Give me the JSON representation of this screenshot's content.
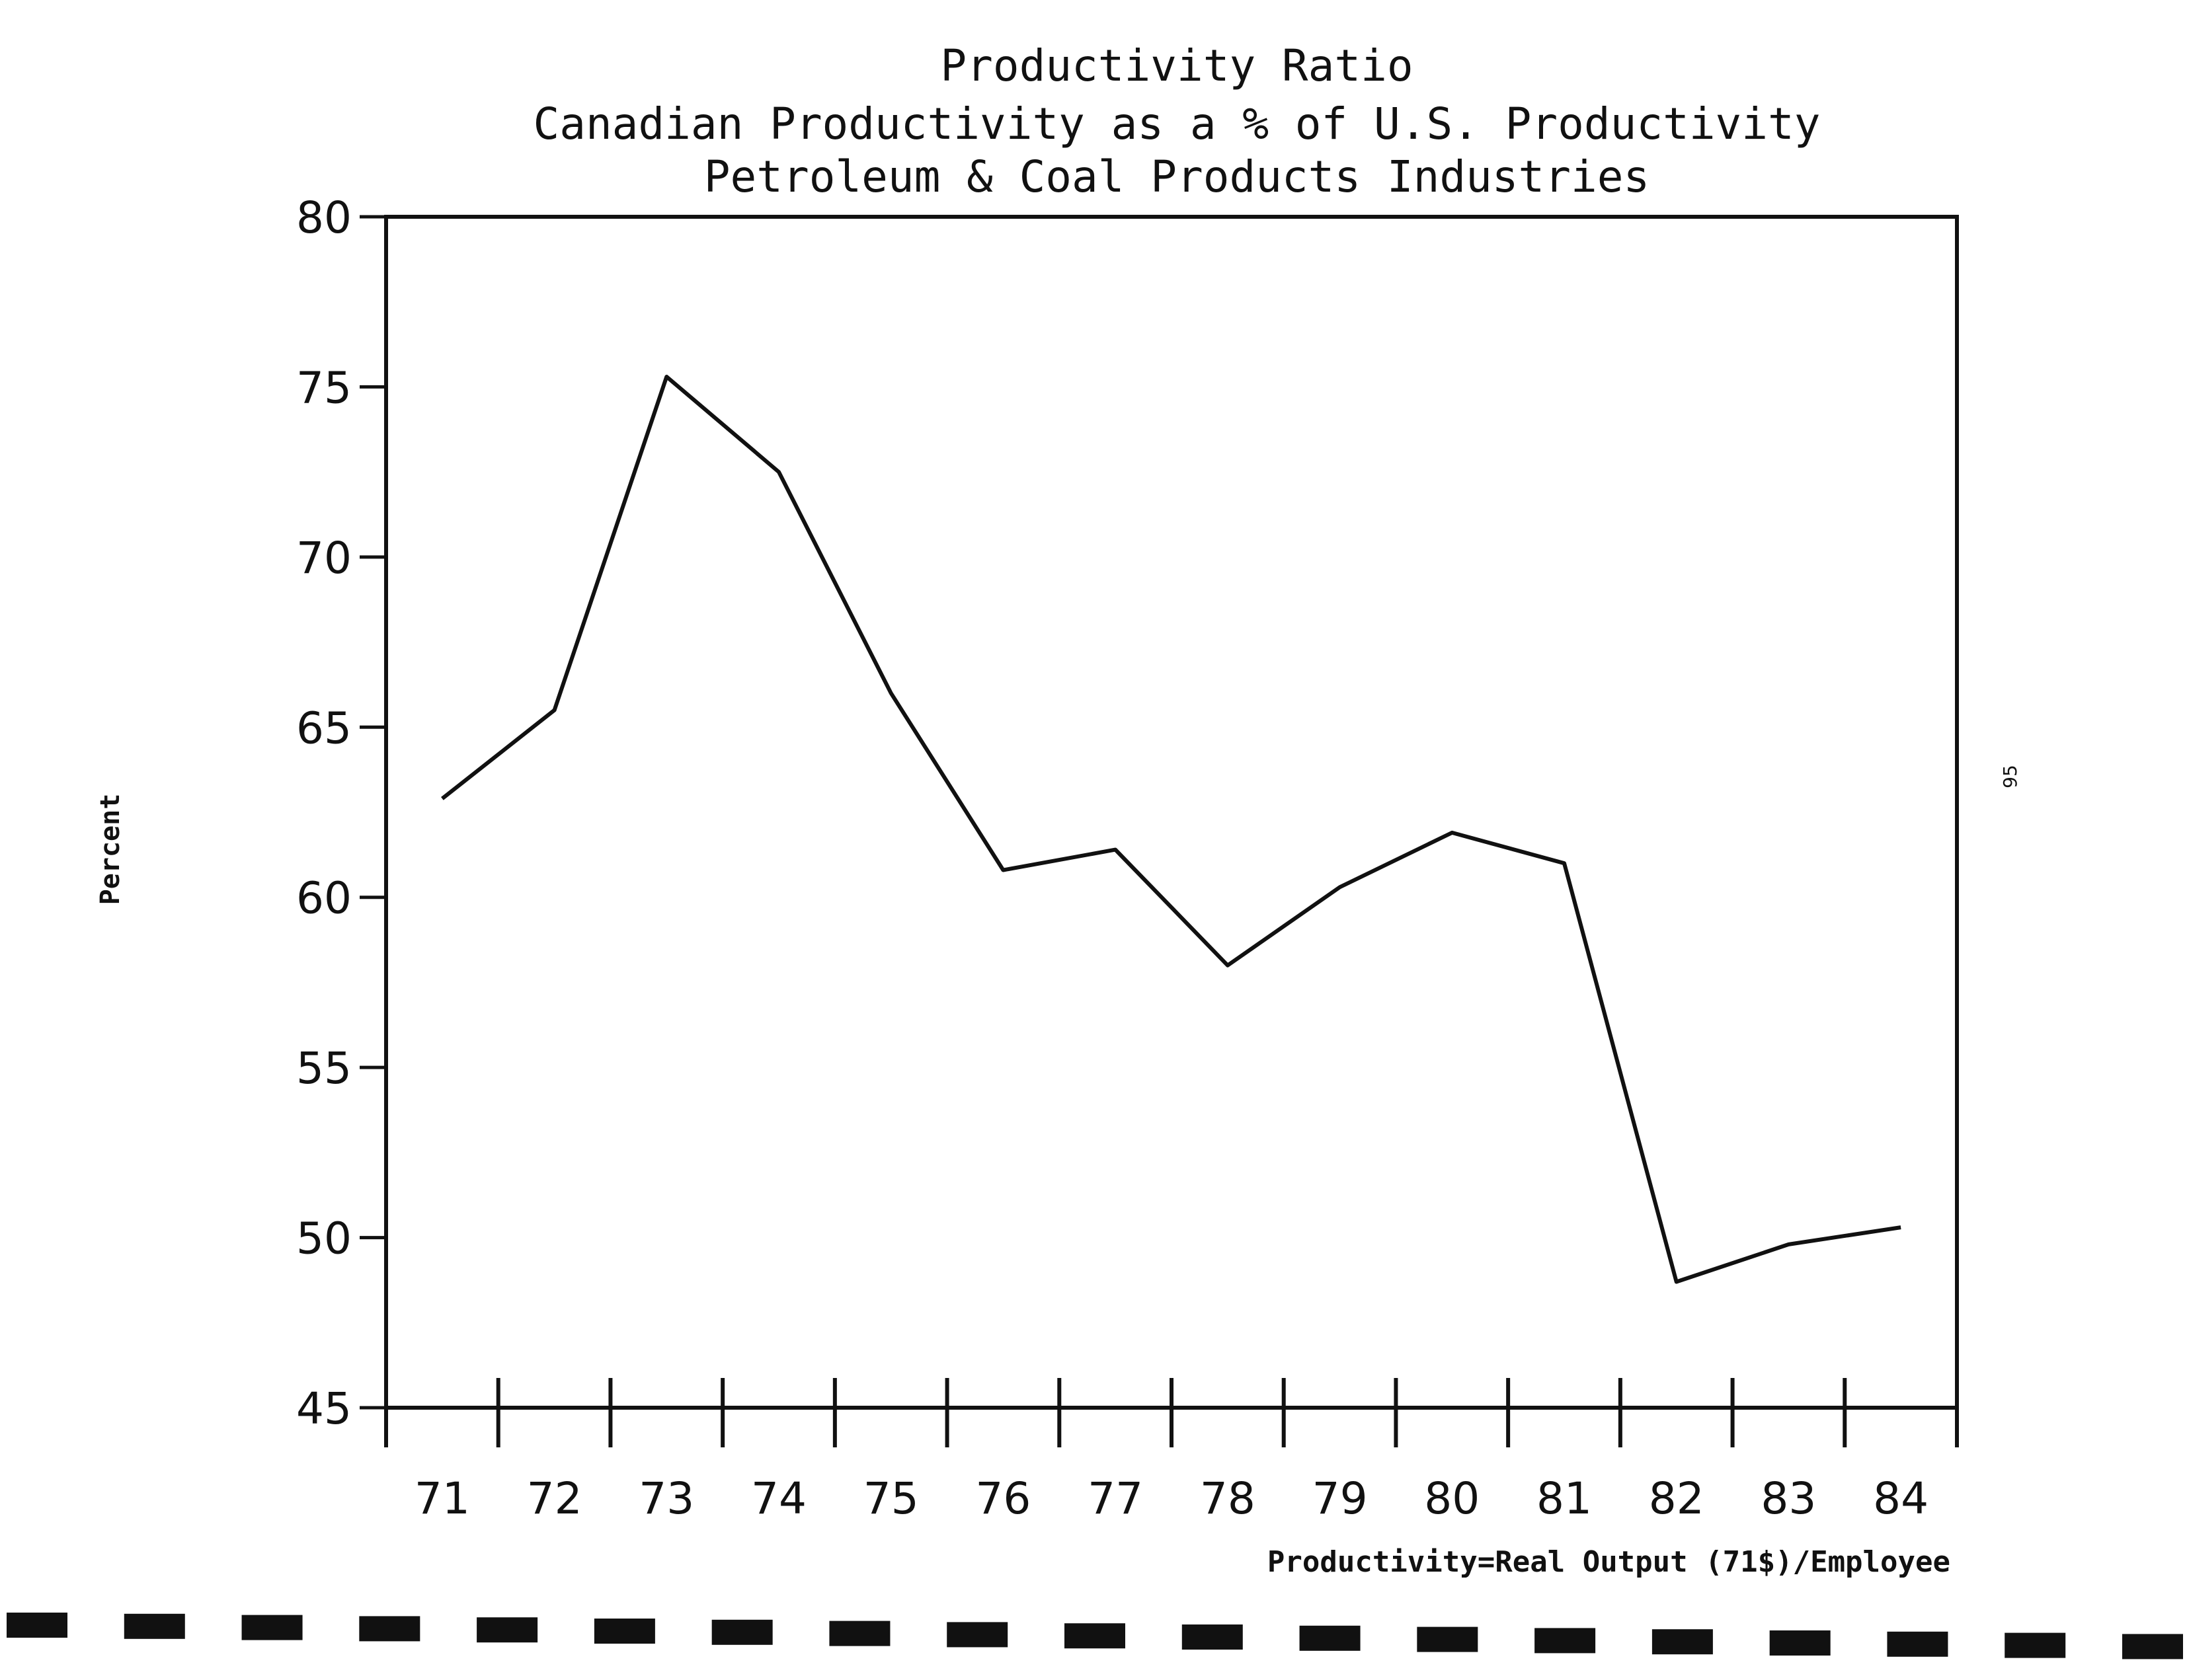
{
  "chart_data": {
    "type": "line",
    "title": "Productivity Ratio",
    "subtitle": "Canadian Productivity as a % of U.S. Productivity",
    "subtitle2": "Petroleum & Coal Products Industries",
    "ylabel": "Percent",
    "xlabel": "",
    "footnote": "Productivity=Real Output (71$)/Employee",
    "page_number": "95",
    "categories": [
      "71",
      "72",
      "73",
      "74",
      "75",
      "76",
      "77",
      "78",
      "79",
      "80",
      "81",
      "82",
      "83",
      "84"
    ],
    "values": [
      62.9,
      65.5,
      75.3,
      72.5,
      66.0,
      60.8,
      61.4,
      58.0,
      60.3,
      61.9,
      61.0,
      48.7,
      49.8,
      50.3
    ],
    "yticks": [
      "80",
      "75",
      "70",
      "65",
      "60",
      "55",
      "50",
      "45"
    ],
    "ylim": [
      45,
      80
    ],
    "grid": false,
    "legend": "none",
    "line_color": "#111111"
  }
}
